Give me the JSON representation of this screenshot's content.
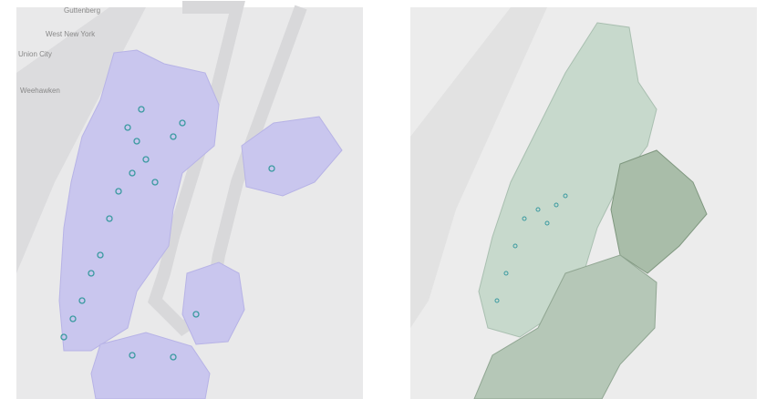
{
  "maps": [
    {
      "labels": [
        "Guttenberg",
        "West New York",
        "Union City",
        "Weehawken"
      ]
    },
    {
      "labels": []
    }
  ]
}
